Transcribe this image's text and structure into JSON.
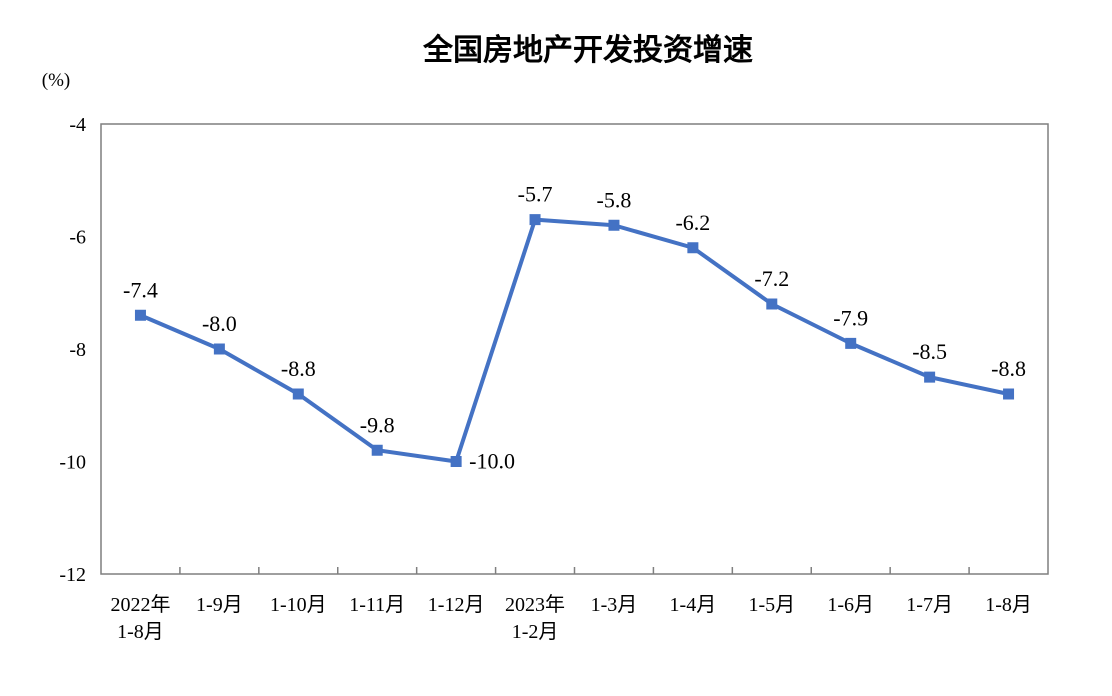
{
  "chart_data": {
    "type": "line",
    "title": "全国房地产开发投资增速",
    "ylabel": "(%)",
    "xlabel": "",
    "ylim": [
      -12,
      -4
    ],
    "yticks": [
      "-4",
      "-6",
      "-8",
      "-10",
      "-12"
    ],
    "ytick_values": [
      -4,
      -6,
      -8,
      -10,
      -12
    ],
    "grid": false,
    "categories": [
      [
        "2022年",
        "1-8月"
      ],
      [
        "1-9月"
      ],
      [
        "1-10月"
      ],
      [
        "1-11月"
      ],
      [
        "1-12月"
      ],
      [
        "2023年",
        "1-2月"
      ],
      [
        "1-3月"
      ],
      [
        "1-4月"
      ],
      [
        "1-5月"
      ],
      [
        "1-6月"
      ],
      [
        "1-7月"
      ],
      [
        "1-8月"
      ]
    ],
    "series": [
      {
        "values": [
          -7.4,
          -8.0,
          -8.8,
          -9.8,
          -10.0,
          -5.7,
          -5.8,
          -6.2,
          -7.2,
          -7.9,
          -8.5,
          -8.8
        ],
        "labels": [
          "-7.4",
          "-8.0",
          "-8.8",
          "-9.8",
          "-10.0",
          "-5.7",
          "-5.8",
          "-6.2",
          "-7.2",
          "-7.9",
          "-8.5",
          "-8.8"
        ],
        "color": "#4472C4"
      }
    ]
  }
}
